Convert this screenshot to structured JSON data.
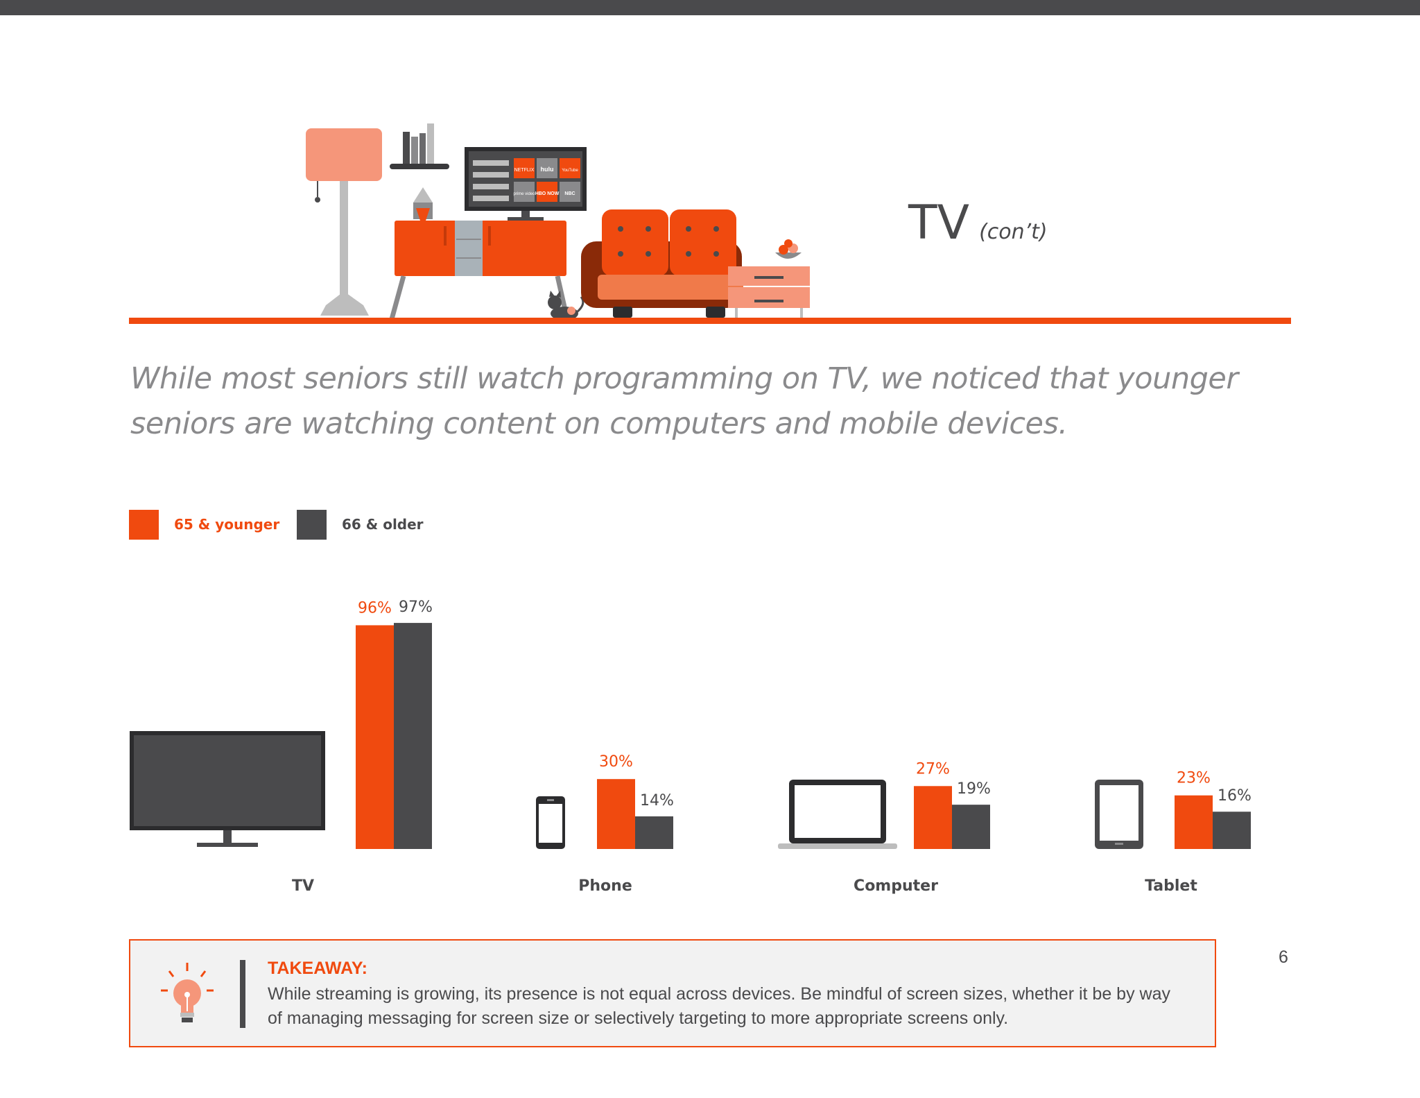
{
  "page": {
    "title": "TV",
    "title_suffix": "(con’t)",
    "subtitle": "While most seniors still watch programming on TV, we noticed that younger seniors are watching content on computers and mobile devices.",
    "page_number": "6"
  },
  "scene": {
    "tv_apps": [
      "NETFLIX",
      "hulu",
      "YouTube",
      "prime video",
      "HBO NOW",
      "NBC"
    ]
  },
  "colors": {
    "accent": "#f04a0f",
    "dark": "#4a4a4c",
    "text_gray": "#8a8a8c",
    "panel_bg": "#f2f2f2"
  },
  "legend": [
    {
      "label": "65 & younger",
      "color": "#f04a0f"
    },
    {
      "label": "66 & older",
      "color": "#4a4a4c"
    }
  ],
  "chart_data": {
    "type": "bar",
    "categories": [
      "TV",
      "Phone",
      "Computer",
      "Tablet"
    ],
    "category_icons": [
      "tv-icon",
      "phone-icon",
      "laptop-icon",
      "tablet-icon"
    ],
    "series": [
      {
        "name": "65 & younger",
        "values": [
          96,
          30,
          27,
          23
        ],
        "labels": [
          "96%",
          "30%",
          "27%",
          "23%"
        ],
        "color": "#f04a0f"
      },
      {
        "name": "66 & older",
        "values": [
          97,
          14,
          19,
          16
        ],
        "labels": [
          "97%",
          "14%",
          "19%",
          "16%"
        ],
        "color": "#4a4a4c"
      }
    ],
    "unit": "%",
    "ylim": [
      0,
      100
    ],
    "grid": false,
    "legend_position": "top-left"
  },
  "takeaway": {
    "title": "TAKEAWAY:",
    "body": "While streaming is growing, its presence is not equal across devices. Be mindful of screen sizes, whether it be by way of managing messaging for screen size or selectively targeting to more appropriate screens only.",
    "icon": "lightbulb-icon"
  }
}
